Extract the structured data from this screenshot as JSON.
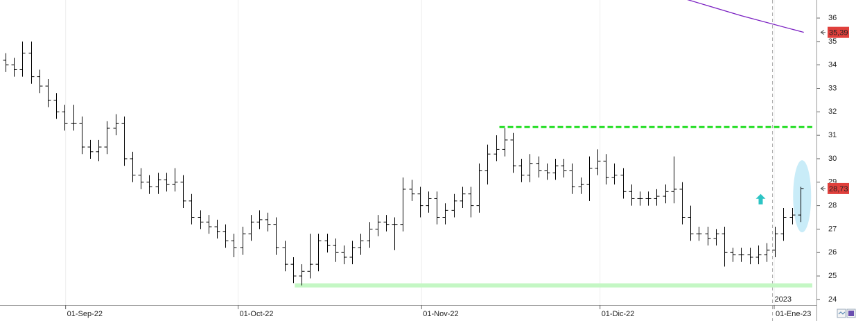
{
  "chart_data": {
    "type": "ohlc",
    "color": "#000000",
    "x": [
      0,
      1,
      2,
      3,
      4,
      5,
      6,
      7,
      8,
      9,
      10,
      11,
      12,
      13,
      14,
      15,
      16,
      17,
      18,
      19,
      20,
      21,
      22,
      23,
      24,
      25,
      26,
      27,
      28,
      29,
      30,
      31,
      32,
      33,
      34,
      35,
      36,
      37,
      38,
      39,
      40,
      41,
      42,
      43,
      44,
      45,
      46,
      47,
      48,
      49,
      50,
      51,
      52,
      53,
      54,
      55,
      56,
      57,
      58,
      59,
      60,
      61,
      62,
      63,
      64,
      65,
      66,
      67,
      68,
      69,
      70,
      71,
      72,
      73,
      74,
      75,
      76,
      77,
      78,
      79,
      80,
      81,
      82,
      83,
      84,
      85,
      86,
      87,
      88,
      89,
      90,
      91,
      92,
      93,
      94
    ],
    "open": [
      34.2,
      34.0,
      33.8,
      34.5,
      33.5,
      33.1,
      32.5,
      32.0,
      31.5,
      31.5,
      30.5,
      30.3,
      30.5,
      31.3,
      31.5,
      30.0,
      29.3,
      29.0,
      28.8,
      29.1,
      28.9,
      29.0,
      28.2,
      27.5,
      27.3,
      27.1,
      26.9,
      26.5,
      26.2,
      26.8,
      27.3,
      27.4,
      27.2,
      26.2,
      25.5,
      25.0,
      25.2,
      25.5,
      26.5,
      26.3,
      26.0,
      25.8,
      26.2,
      26.5,
      27.0,
      27.3,
      27.2,
      27.2,
      28.7,
      28.5,
      28.0,
      28.3,
      27.5,
      27.8,
      28.2,
      28.5,
      28.0,
      29.5,
      30.2,
      30.4,
      30.8,
      29.7,
      29.3,
      29.8,
      29.5,
      29.4,
      29.7,
      29.5,
      28.8,
      28.9,
      29.6,
      29.9,
      29.2,
      29.3,
      28.6,
      28.3,
      28.3,
      28.3,
      28.4,
      28.6,
      28.7,
      27.5,
      26.8,
      26.8,
      26.6,
      26.8,
      26.0,
      25.9,
      25.9,
      25.8,
      25.9,
      26.1,
      26.8,
      27.5,
      27.6
    ],
    "high": [
      34.5,
      34.3,
      35.0,
      35.0,
      33.8,
      33.4,
      32.8,
      32.3,
      32.3,
      31.8,
      30.8,
      30.8,
      31.6,
      31.9,
      31.8,
      30.3,
      29.6,
      29.3,
      29.4,
      29.4,
      29.6,
      29.3,
      28.5,
      27.8,
      27.6,
      27.4,
      27.2,
      26.8,
      27.1,
      27.6,
      27.8,
      27.7,
      27.5,
      26.5,
      25.8,
      25.5,
      26.8,
      26.8,
      26.8,
      26.6,
      26.3,
      26.5,
      26.8,
      27.3,
      27.6,
      27.6,
      27.5,
      29.2,
      29.1,
      28.8,
      28.6,
      28.6,
      28.1,
      28.5,
      28.8,
      28.8,
      29.8,
      30.6,
      31.0,
      31.3,
      31.1,
      30.0,
      30.2,
      30.1,
      29.8,
      30.0,
      30.0,
      29.8,
      29.2,
      30.1,
      30.4,
      30.2,
      29.8,
      29.6,
      28.9,
      28.6,
      28.6,
      28.7,
      28.9,
      30.1,
      29.0,
      28.0,
      27.1,
      27.1,
      27.0,
      27.1,
      26.2,
      26.2,
      26.2,
      26.3,
      26.4,
      27.1,
      27.9,
      27.9,
      28.8
    ],
    "low": [
      33.7,
      33.5,
      33.5,
      33.2,
      32.8,
      32.2,
      31.7,
      31.2,
      31.2,
      30.2,
      30.0,
      29.9,
      30.2,
      31.0,
      29.7,
      29.0,
      28.7,
      28.5,
      28.5,
      28.6,
      28.6,
      27.9,
      27.2,
      27.0,
      26.8,
      26.6,
      26.2,
      25.8,
      25.9,
      26.5,
      27.0,
      26.9,
      25.9,
      25.2,
      24.7,
      24.6,
      24.9,
      25.2,
      26.0,
      25.6,
      25.5,
      25.5,
      25.9,
      26.2,
      26.7,
      26.9,
      26.1,
      26.9,
      28.2,
      27.5,
      27.7,
      27.2,
      27.2,
      27.5,
      27.9,
      27.5,
      27.7,
      28.9,
      29.9,
      30.1,
      29.4,
      29.0,
      29.0,
      29.2,
      29.1,
      29.1,
      29.2,
      28.5,
      28.5,
      28.2,
      29.3,
      28.9,
      28.9,
      28.3,
      28.0,
      28.0,
      28.0,
      28.0,
      28.1,
      28.1,
      27.2,
      26.5,
      26.5,
      26.3,
      26.3,
      25.4,
      25.6,
      25.6,
      25.5,
      25.5,
      25.6,
      25.8,
      26.5,
      27.2,
      27.3
    ],
    "close": [
      34.0,
      33.8,
      34.5,
      33.5,
      33.1,
      32.5,
      32.0,
      31.5,
      31.5,
      30.5,
      30.3,
      30.5,
      31.3,
      31.5,
      30.0,
      29.3,
      29.0,
      28.8,
      29.1,
      28.9,
      29.0,
      28.2,
      27.5,
      27.3,
      27.1,
      26.9,
      26.5,
      26.2,
      26.8,
      27.3,
      27.4,
      27.2,
      26.2,
      25.5,
      25.0,
      25.2,
      25.5,
      26.5,
      26.3,
      26.0,
      25.8,
      26.2,
      26.5,
      27.0,
      27.3,
      27.2,
      27.2,
      28.7,
      28.5,
      28.0,
      28.3,
      27.5,
      27.8,
      28.2,
      28.5,
      28.0,
      29.5,
      30.2,
      30.4,
      30.8,
      29.7,
      29.3,
      29.8,
      29.5,
      29.4,
      29.7,
      29.5,
      28.8,
      28.9,
      29.6,
      29.9,
      29.2,
      29.3,
      28.6,
      28.3,
      28.3,
      28.3,
      28.4,
      28.6,
      28.7,
      27.5,
      26.8,
      26.8,
      26.6,
      26.8,
      26.0,
      25.9,
      25.9,
      25.8,
      25.9,
      26.1,
      26.8,
      27.5,
      27.6,
      28.73
    ],
    "xlim": [
      -0.66,
      95.9
    ],
    "ylim": [
      23.76,
      36.77
    ],
    "yticks": [
      24,
      25,
      26,
      27,
      28,
      29,
      30,
      31,
      32,
      33,
      34,
      35,
      36
    ],
    "xticks": [
      {
        "value": 7.1,
        "label": "01-Sep-22"
      },
      {
        "value": 27.5,
        "label": "01-Oct-22"
      },
      {
        "value": 49.2,
        "label": "01-Nov-22"
      },
      {
        "value": 70.3,
        "label": "01-Dic-22"
      },
      {
        "value": 90.9,
        "label": "01-Ene-23"
      }
    ],
    "price_labels": [
      {
        "value": 35.39,
        "label": "35,39",
        "color": "#e0403c"
      },
      {
        "value": 28.73,
        "label": "28,73",
        "color": "#e0403c"
      }
    ],
    "ma": {
      "x": [
        80.5,
        87.0,
        94.4
      ],
      "values": [
        36.8,
        36.1,
        35.39
      ],
      "color": "#7a1fc2"
    },
    "resistance": {
      "value": 31.35,
      "x": [
        58.4,
        95.4
      ],
      "color": "#22dd22"
    },
    "support": {
      "value": 24.6,
      "x": [
        34.2,
        95.4
      ],
      "color": "#c4f7c4"
    },
    "separator": {
      "x": 90.7,
      "label": "2023"
    },
    "arrow": {
      "x": 89.3,
      "value": 28.5,
      "color": "#2cc4c4"
    },
    "highlight": {
      "x": 94.2,
      "value": 28.4,
      "color": "#bfe9f7"
    }
  }
}
